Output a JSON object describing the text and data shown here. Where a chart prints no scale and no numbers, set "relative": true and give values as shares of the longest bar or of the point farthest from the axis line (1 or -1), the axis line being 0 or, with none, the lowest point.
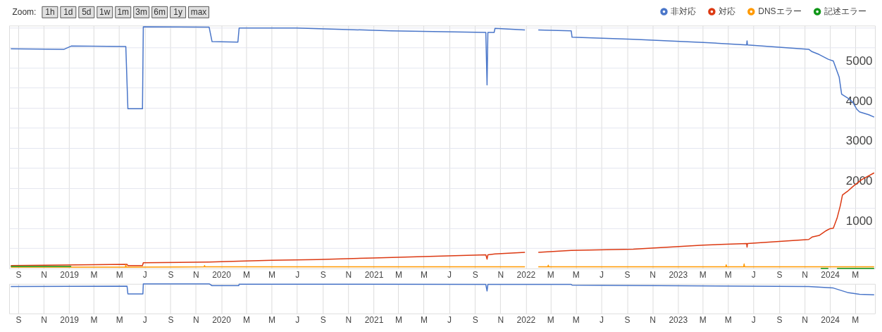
{
  "chart_data": [
    {
      "type": "line",
      "legend": "top right",
      "grid": true,
      "annotations": [
        "Zoom:",
        "1h",
        "1d",
        "5d",
        "1w",
        "1m",
        "3m",
        "6m",
        "1y",
        "max"
      ],
      "xlim": [
        "2018-08-10",
        "2024-04-18"
      ],
      "xticks": [
        {
          "value": "2018-09-01",
          "label": "S"
        },
        {
          "value": "2018-11-01",
          "label": "N"
        },
        {
          "value": "2019-01-01",
          "label": "2019"
        },
        {
          "value": "2019-03-01",
          "label": "M"
        },
        {
          "value": "2019-05-01",
          "label": "M"
        },
        {
          "value": "2019-07-01",
          "label": "J"
        },
        {
          "value": "2019-09-01",
          "label": "S"
        },
        {
          "value": "2019-11-01",
          "label": "N"
        },
        {
          "value": "2020-01-01",
          "label": "2020"
        },
        {
          "value": "2020-03-01",
          "label": "M"
        },
        {
          "value": "2020-05-01",
          "label": "M"
        },
        {
          "value": "2020-07-01",
          "label": "J"
        },
        {
          "value": "2020-09-01",
          "label": "S"
        },
        {
          "value": "2020-11-01",
          "label": "N"
        },
        {
          "value": "2021-01-01",
          "label": "2021"
        },
        {
          "value": "2021-03-01",
          "label": "M"
        },
        {
          "value": "2021-05-01",
          "label": "M"
        },
        {
          "value": "2021-07-01",
          "label": "J"
        },
        {
          "value": "2021-09-01",
          "label": "S"
        },
        {
          "value": "2021-11-01",
          "label": "N"
        },
        {
          "value": "2022-01-01",
          "label": "2022"
        },
        {
          "value": "2022-03-01",
          "label": "M"
        },
        {
          "value": "2022-05-01",
          "label": "M"
        },
        {
          "value": "2022-07-01",
          "label": "J"
        },
        {
          "value": "2022-09-01",
          "label": "S"
        },
        {
          "value": "2022-11-01",
          "label": "N"
        },
        {
          "value": "2023-01-01",
          "label": "2023"
        },
        {
          "value": "2023-03-01",
          "label": "M"
        },
        {
          "value": "2023-05-01",
          "label": "M"
        },
        {
          "value": "2023-07-01",
          "label": "J"
        },
        {
          "value": "2023-09-01",
          "label": "S"
        },
        {
          "value": "2023-11-01",
          "label": "N"
        },
        {
          "value": "2024-01-01",
          "label": "2024"
        },
        {
          "value": "2024-03-01",
          "label": "M"
        }
      ],
      "ylim": [
        0,
        6050
      ],
      "yticks": [
        {
          "value": 500,
          "label": null
        },
        1000,
        {
          "value": 1500,
          "label": null
        },
        2000,
        {
          "value": 2500,
          "label": null
        },
        3000,
        {
          "value": 3500,
          "label": null
        },
        4000,
        {
          "value": 4500,
          "label": null
        },
        5000,
        {
          "value": 5500,
          "label": null
        },
        {
          "value": 6000,
          "label": null
        }
      ],
      "series": [
        {
          "name": "非対応",
          "color": "#4a76c9",
          "x": [
            "2018-08-14",
            "2018-12-20",
            "2019-01-06",
            "2019-05-17",
            "2019-05-22",
            "2019-06-26",
            "2019-06-28",
            "2019-12-03",
            "2019-12-10",
            "2020-02-10",
            "2020-02-13",
            "2020-06-29",
            "2021-02-11",
            "2021-09-27",
            "2021-09-30",
            "2021-10-02",
            "2021-10-17",
            "2021-10-19",
            "2021-12-30",
            "2022-01-15",
            "2022-01-31",
            "2022-04-20",
            "2022-04-22",
            "2022-09-16",
            "2023-03-03",
            "2023-06-15",
            "2023-06-16",
            "2023-06-17",
            "2023-11-11",
            "2023-11-19",
            "2023-12-06",
            "2023-12-28",
            "2024-01-09",
            "2024-01-23",
            "2024-01-29",
            "2024-02-12",
            "2024-02-25",
            "2024-03-05",
            "2024-03-12",
            "2024-04-03",
            "2024-04-16"
          ],
          "values": [
            5470,
            5460,
            5540,
            5530,
            3980,
            3980,
            6020,
            6010,
            5650,
            5640,
            5990,
            5990,
            5920,
            5880,
            4570,
            5880,
            5880,
            5980,
            5940,
            null,
            5940,
            5920,
            5760,
            5710,
            5630,
            5570,
            5670,
            5570,
            5460,
            5400,
            5330,
            5210,
            5170,
            4770,
            4340,
            4250,
            4140,
            3970,
            3900,
            3830,
            3770
          ]
        },
        {
          "name": "対応",
          "color": "#dc3912",
          "x": [
            "2018-08-14",
            "2019-05-20",
            "2019-05-22",
            "2019-06-26",
            "2019-06-28",
            "2019-12-03",
            "2020-02-13",
            "2020-05-01",
            "2020-08-18",
            "2020-12-31",
            "2021-09-27",
            "2021-09-30",
            "2021-10-02",
            "2021-10-19",
            "2021-12-30",
            "2022-01-15",
            "2022-01-31",
            "2022-04-20",
            "2022-09-16",
            "2023-03-03",
            "2023-06-15",
            "2023-06-16",
            "2023-06-17",
            "2023-11-11",
            "2023-11-19",
            "2023-12-06",
            "2023-12-23",
            "2024-01-01",
            "2024-01-09",
            "2024-01-18",
            "2024-01-26",
            "2024-01-31",
            "2024-02-12",
            "2024-02-25",
            "2024-03-17",
            "2024-04-16"
          ],
          "values": [
            70,
            100,
            70,
            70,
            140,
            160,
            180,
            200,
            220,
            260,
            340,
            230,
            340,
            360,
            400,
            null,
            400,
            450,
            480,
            580,
            620,
            530,
            620,
            720,
            780,
            820,
            940,
            990,
            1000,
            1250,
            1570,
            1830,
            1920,
            2040,
            2210,
            2380
          ]
        },
        {
          "name": "DNSエラー",
          "color": "#ff9900",
          "x": [
            "2018-08-14",
            "2019-05-16",
            "2019-05-17",
            "2019-05-18",
            "2019-11-21",
            "2019-11-22",
            "2019-11-23",
            "2021-12-30",
            "2022-01-15",
            "2022-01-31",
            "2022-02-23",
            "2022-02-24",
            "2022-02-25",
            "2023-04-26",
            "2023-04-27",
            "2023-04-28",
            "2023-06-08",
            "2023-06-09",
            "2023-06-10",
            "2024-04-16"
          ],
          "values": [
            30,
            30,
            90,
            30,
            40,
            70,
            40,
            40,
            null,
            40,
            40,
            80,
            40,
            40,
            90,
            40,
            40,
            110,
            40,
            40
          ]
        },
        {
          "name": "記述エラー",
          "color": "#109618",
          "x": [
            "2018-08-14",
            "2019-01-06",
            "2019-01-07",
            "2023-12-10",
            "2023-12-28",
            "2024-01-05",
            "2024-01-18",
            "2024-04-16"
          ],
          "values": [
            50,
            50,
            null,
            0,
            0,
            null,
            0,
            0
          ]
        }
      ]
    },
    {
      "type": "line",
      "relative": true,
      "grid": "x",
      "xlim": [
        "2018-08-10",
        "2024-04-18"
      ],
      "xticks": [
        {
          "value": "2018-09-01",
          "label": "S"
        },
        {
          "value": "2018-11-01",
          "label": "N"
        },
        {
          "value": "2019-01-01",
          "label": "2019"
        },
        {
          "value": "2019-03-01",
          "label": "M"
        },
        {
          "value": "2019-05-01",
          "label": "M"
        },
        {
          "value": "2019-07-01",
          "label": "J"
        },
        {
          "value": "2019-09-01",
          "label": "S"
        },
        {
          "value": "2019-11-01",
          "label": "N"
        },
        {
          "value": "2020-01-01",
          "label": "2020"
        },
        {
          "value": "2020-03-01",
          "label": "M"
        },
        {
          "value": "2020-05-01",
          "label": "M"
        },
        {
          "value": "2020-07-01",
          "label": "J"
        },
        {
          "value": "2020-09-01",
          "label": "S"
        },
        {
          "value": "2020-11-01",
          "label": "N"
        },
        {
          "value": "2021-01-01",
          "label": "2021"
        },
        {
          "value": "2021-03-01",
          "label": "M"
        },
        {
          "value": "2021-05-01",
          "label": "M"
        },
        {
          "value": "2021-07-01",
          "label": "J"
        },
        {
          "value": "2021-09-01",
          "label": "S"
        },
        {
          "value": "2021-11-01",
          "label": "N"
        },
        {
          "value": "2022-01-01",
          "label": "2022"
        },
        {
          "value": "2022-03-01",
          "label": "M"
        },
        {
          "value": "2022-05-01",
          "label": "M"
        },
        {
          "value": "2022-07-01",
          "label": "J"
        },
        {
          "value": "2022-09-01",
          "label": "S"
        },
        {
          "value": "2022-11-01",
          "label": "N"
        },
        {
          "value": "2023-01-01",
          "label": "2023"
        },
        {
          "value": "2023-03-01",
          "label": "M"
        },
        {
          "value": "2023-05-01",
          "label": "M"
        },
        {
          "value": "2023-07-01",
          "label": "J"
        },
        {
          "value": "2023-09-01",
          "label": "S"
        },
        {
          "value": "2023-11-01",
          "label": "N"
        },
        {
          "value": "2024-01-01",
          "label": "2024"
        },
        {
          "value": "2024-03-01",
          "label": "M"
        }
      ],
      "series": [
        {
          "color": "#4a76c9",
          "x": [
            "2018-08-14",
            "2019-05-20",
            "2019-05-22",
            "2019-06-27",
            "2019-06-28",
            "2019-12-03",
            "2019-12-10",
            "2020-02-12",
            "2020-02-13",
            "2021-09-27",
            "2021-09-30",
            "2021-10-02",
            "2022-04-20",
            "2022-04-22",
            "2023-11-11",
            "2024-01-09",
            "2024-02-12",
            "2024-03-12",
            "2024-04-16"
          ],
          "values": [
            0.91,
            0.92,
            0.66,
            0.66,
            1,
            1,
            0.94,
            0.94,
            0.99,
            0.98,
            0.76,
            0.98,
            0.98,
            0.96,
            0.91,
            0.86,
            0.71,
            0.65,
            0.63
          ]
        }
      ]
    }
  ]
}
